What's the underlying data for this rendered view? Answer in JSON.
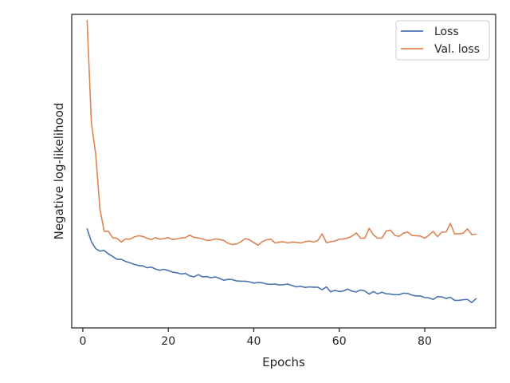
{
  "chart_data": {
    "type": "line",
    "title": "",
    "xlabel": "Epochs",
    "ylabel": "Negative log-likelihood",
    "xlim": [
      -2.6,
      96.6
    ],
    "ylim": [
      0.0,
      1.0
    ],
    "x_ticks": [
      0,
      20,
      40,
      60,
      80
    ],
    "y_ticks_shown": false,
    "grid": false,
    "legend_position": "top-right",
    "x": [
      1,
      2,
      3,
      4,
      5,
      6,
      7,
      8,
      9,
      10,
      11,
      12,
      13,
      14,
      15,
      16,
      17,
      18,
      19,
      20,
      21,
      22,
      23,
      24,
      25,
      26,
      27,
      28,
      29,
      30,
      31,
      32,
      33,
      34,
      35,
      36,
      37,
      38,
      39,
      40,
      41,
      42,
      43,
      44,
      45,
      46,
      47,
      48,
      49,
      50,
      51,
      52,
      53,
      54,
      55,
      56,
      57,
      58,
      59,
      60,
      61,
      62,
      63,
      64,
      65,
      66,
      67,
      68,
      69,
      70,
      71,
      72,
      73,
      74,
      75,
      76,
      77,
      78,
      79,
      80,
      81,
      82,
      83,
      84,
      85,
      86,
      87,
      88,
      89,
      90,
      91,
      92
    ],
    "series": [
      {
        "name": "Loss",
        "color": "#4c72b0",
        "values": [
          0.316,
          0.275,
          0.253,
          0.245,
          0.247,
          0.236,
          0.228,
          0.219,
          0.219,
          0.212,
          0.208,
          0.203,
          0.199,
          0.198,
          0.192,
          0.194,
          0.188,
          0.184,
          0.187,
          0.183,
          0.178,
          0.176,
          0.172,
          0.174,
          0.166,
          0.163,
          0.17,
          0.163,
          0.164,
          0.16,
          0.163,
          0.158,
          0.152,
          0.155,
          0.154,
          0.15,
          0.149,
          0.149,
          0.147,
          0.143,
          0.145,
          0.144,
          0.14,
          0.139,
          0.14,
          0.137,
          0.138,
          0.14,
          0.135,
          0.131,
          0.133,
          0.129,
          0.131,
          0.13,
          0.13,
          0.122,
          0.131,
          0.115,
          0.12,
          0.116,
          0.118,
          0.124,
          0.117,
          0.115,
          0.121,
          0.118,
          0.108,
          0.116,
          0.109,
          0.114,
          0.109,
          0.108,
          0.106,
          0.106,
          0.111,
          0.11,
          0.105,
          0.102,
          0.102,
          0.097,
          0.096,
          0.091,
          0.1,
          0.099,
          0.094,
          0.098,
          0.088,
          0.088,
          0.09,
          0.091,
          0.081,
          0.093
        ]
      },
      {
        "name": "Val. loss",
        "color": "#dd8452",
        "values": [
          0.981,
          0.654,
          0.556,
          0.379,
          0.308,
          0.308,
          0.287,
          0.286,
          0.274,
          0.284,
          0.283,
          0.29,
          0.294,
          0.292,
          0.286,
          0.282,
          0.288,
          0.283,
          0.285,
          0.288,
          0.282,
          0.284,
          0.287,
          0.288,
          0.296,
          0.289,
          0.287,
          0.284,
          0.279,
          0.28,
          0.284,
          0.282,
          0.279,
          0.27,
          0.266,
          0.268,
          0.275,
          0.285,
          0.281,
          0.272,
          0.264,
          0.275,
          0.281,
          0.283,
          0.271,
          0.274,
          0.275,
          0.271,
          0.274,
          0.273,
          0.271,
          0.275,
          0.277,
          0.274,
          0.279,
          0.3,
          0.272,
          0.275,
          0.277,
          0.283,
          0.284,
          0.287,
          0.293,
          0.303,
          0.286,
          0.286,
          0.318,
          0.297,
          0.286,
          0.287,
          0.309,
          0.312,
          0.295,
          0.292,
          0.302,
          0.306,
          0.295,
          0.294,
          0.293,
          0.286,
          0.296,
          0.308,
          0.291,
          0.306,
          0.306,
          0.333,
          0.3,
          0.3,
          0.302,
          0.316,
          0.298,
          0.299
        ]
      }
    ]
  }
}
